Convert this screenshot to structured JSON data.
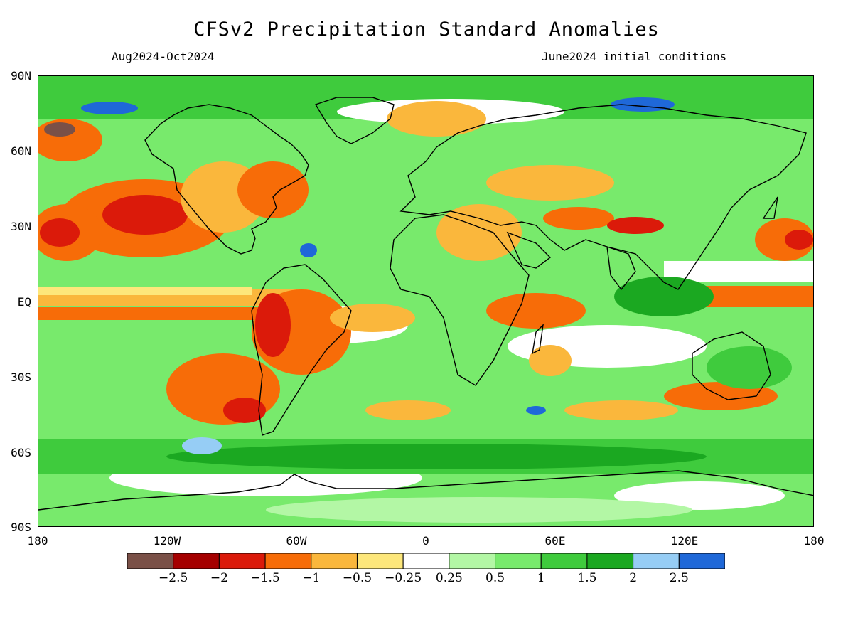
{
  "title": "CFSv2 Precipitation Standard Anomalies",
  "subtitle_left": "Aug2024-Oct2024",
  "subtitle_right": "June2024 initial conditions",
  "lat_labels": [
    "90N",
    "60N",
    "30N",
    "EQ",
    "30S",
    "60S",
    "90S"
  ],
  "lon_labels": [
    "180",
    "120W",
    "60W",
    "0",
    "60E",
    "120E",
    "180"
  ],
  "colorbar": {
    "colors": [
      "#7a5047",
      "#a50000",
      "#db1a0a",
      "#f76c08",
      "#fab73c",
      "#fde77b",
      "#ffffff",
      "#b3f7a5",
      "#78ea6c",
      "#3fcb3d",
      "#1ba821",
      "#96cdf5",
      "#1f68d8"
    ],
    "labels": [
      "−2.5",
      "−2",
      "−1.5",
      "−1",
      "−0.5",
      "−0.25",
      "0.25",
      "0.5",
      "1",
      "1.5",
      "2",
      "2.5"
    ]
  },
  "legend_colors": {
    "strong_dry": "#a50000",
    "dry": "#f76c08",
    "wet": "#3fcb3d",
    "strong_wet": "#1f68d8",
    "coastline": "#000000"
  }
}
